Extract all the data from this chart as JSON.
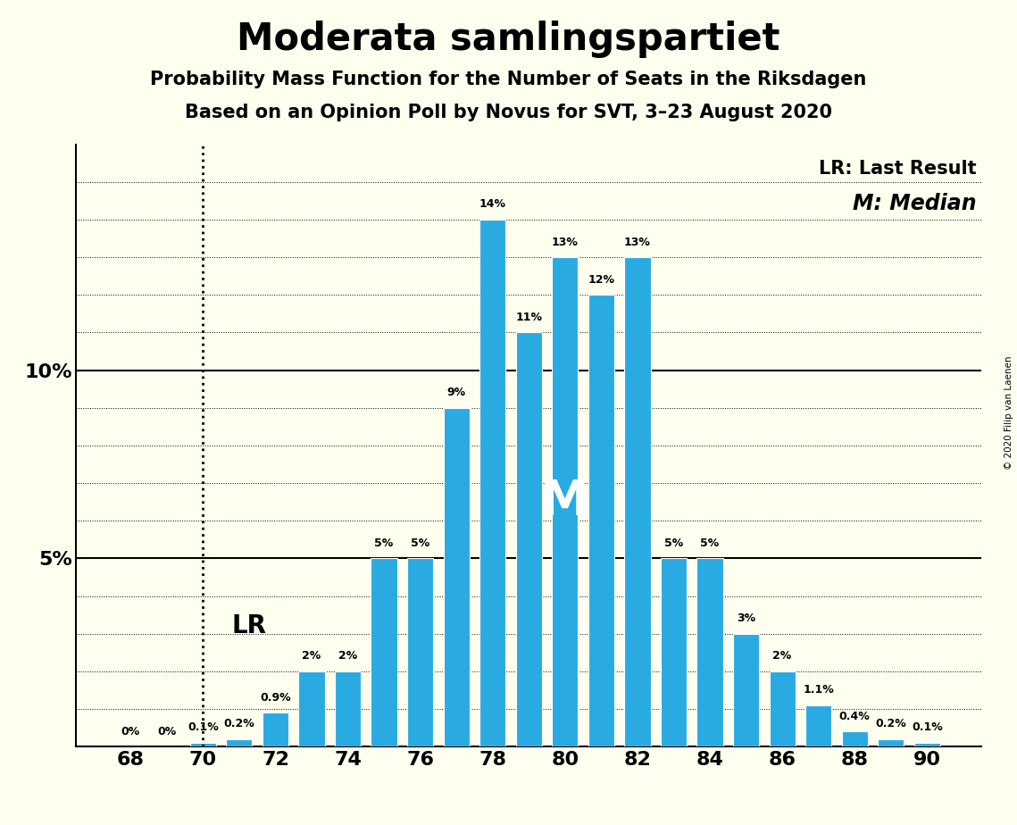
{
  "title": "Moderata samlingspartiet",
  "subtitle1": "Probability Mass Function for the Number of Seats in the Riksdagen",
  "subtitle2": "Based on an Opinion Poll by Novus for SVT, 3–23 August 2020",
  "copyright": "© 2020 Filip van Laenen",
  "seats": [
    68,
    69,
    70,
    71,
    72,
    73,
    74,
    75,
    76,
    77,
    78,
    79,
    80,
    81,
    82,
    83,
    84,
    85,
    86,
    87,
    88,
    89,
    90
  ],
  "probabilities": [
    0.0,
    0.0,
    0.1,
    0.2,
    0.9,
    2.0,
    2.0,
    5.0,
    5.0,
    9.0,
    14.0,
    11.0,
    13.0,
    12.0,
    13.0,
    5.0,
    5.0,
    3.0,
    2.0,
    1.1,
    0.4,
    0.2,
    0.1
  ],
  "bar_labels": [
    "0%",
    "0%",
    "0.1%",
    "0.2%",
    "0.9%",
    "2%",
    "2%",
    "5%",
    "5%",
    "9%",
    "14%",
    "11%",
    "13%",
    "12%",
    "13%",
    "5%",
    "5%",
    "3%",
    "2%",
    "1.1%",
    "0.4%",
    "0.2%",
    "0.1%"
  ],
  "bar_color": "#29ABE2",
  "bg_color": "#FFFFF0",
  "lr_seat": 70,
  "median_seat": 80,
  "lr_label": "LR",
  "median_label": "M",
  "legend_lr": "LR: Last Result",
  "legend_m": "M: Median",
  "xlabel_seats": [
    68,
    70,
    72,
    74,
    76,
    78,
    80,
    82,
    84,
    86,
    88,
    90
  ],
  "bar_width": 0.72,
  "ylim": [
    0,
    16.0
  ],
  "xlim_left": 66.5,
  "xlim_right": 91.5
}
